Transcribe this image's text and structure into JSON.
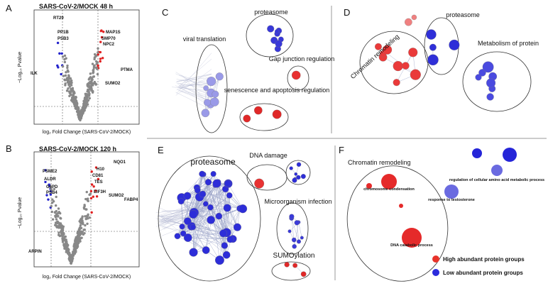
{
  "panels": {
    "A": {
      "letter": "A",
      "title": "SARS-CoV-2/MOCK 48 h",
      "y_label": "−Log₁₀ Pvalue",
      "x_label": "log₂ Fold Change (SARS-CoV-2/MOCK)",
      "genes": [
        "RT29",
        "PP1B",
        "PSB3",
        "MAP1S",
        "SMP70",
        "NPC2",
        "PTMA",
        "ILK",
        "SUMO2"
      ]
    },
    "B": {
      "letter": "B",
      "title": "SARS-CoV-2/MOCK 120 h",
      "y_label": "−Log₁₀ Pvalue",
      "x_label": "log₂ Fold Change (SARS-CoV-2/MOCK)",
      "genes": [
        "PSME2",
        "ALDR",
        "G6PD",
        "PSB4",
        "ARPIN",
        "NQO1",
        "H10",
        "CD81",
        "TES",
        "EIF3H",
        "SUMO2",
        "FABP4"
      ]
    },
    "C": {
      "letter": "C",
      "clusters": [
        "proteasome",
        "viral translation",
        "Gap junction regulation",
        "senescence and apoptosis regulation"
      ]
    },
    "D": {
      "letter": "D",
      "clusters": [
        "proteasome",
        "Chromatin remodeling",
        "Metabolism of protein"
      ]
    },
    "E": {
      "letter": "E",
      "clusters": [
        "proteasome",
        "DNA damage",
        "Microorganism infection",
        "SUMOylation"
      ]
    },
    "F": {
      "letter": "F",
      "title": "Chromatin remodeling",
      "nodes": [
        "chromosome condensation",
        "DNA catabolic process",
        "response to testosterone",
        "regulation of cellular amino acid metabolic process"
      ]
    }
  },
  "legend": {
    "high": "High abundant protein groups",
    "low": "Low abundant protein groups"
  }
}
